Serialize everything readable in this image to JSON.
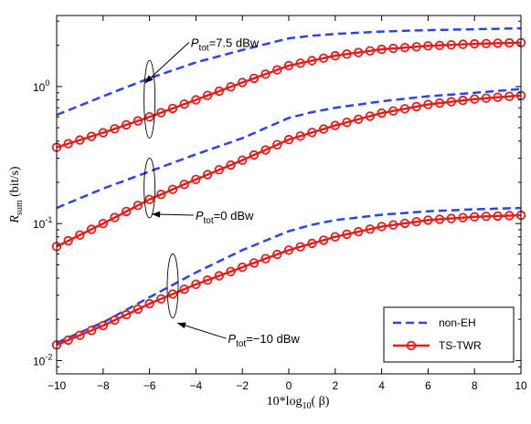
{
  "chart_data": {
    "type": "line",
    "xscale": "linear",
    "yscale": "log",
    "xlim": [
      -10,
      10
    ],
    "ylim": [
      0.008,
      3.3
    ],
    "xticks": [
      "−10",
      "−8",
      "−6",
      "−4",
      "−2",
      "0",
      "2",
      "4",
      "6",
      "8",
      "10"
    ],
    "xtick_values": [
      -10,
      -8,
      -6,
      -4,
      -2,
      0,
      2,
      4,
      6,
      8,
      10
    ],
    "yticks": [
      {
        "value": 0.01,
        "base": "10",
        "exp": "-2"
      },
      {
        "value": 0.1,
        "base": "10",
        "exp": "-1"
      },
      {
        "value": 1,
        "base": "10",
        "exp": "0"
      }
    ],
    "xlabel": {
      "main": "10*log",
      "sub": "10",
      "rest": "( β)"
    },
    "ylabel": {
      "main": "R",
      "sub": "sum",
      "rest": " (bit/s)"
    },
    "series": [
      {
        "name": "non-EH",
        "style": "dashed",
        "color": "#2b44e8",
        "group": "7.5",
        "x": [
          -10,
          -8,
          -6,
          -4,
          -2,
          0,
          1,
          2,
          4,
          6,
          8,
          10
        ],
        "y": [
          0.62,
          0.85,
          1.15,
          1.5,
          1.85,
          2.25,
          2.35,
          2.42,
          2.52,
          2.58,
          2.62,
          2.66
        ]
      },
      {
        "name": "TS-TWR",
        "style": "solid-circle",
        "color": "#e0201c",
        "group": "7.5",
        "x": [
          -10,
          -8,
          -6,
          -4,
          -2,
          0,
          2,
          4,
          6,
          8,
          10
        ],
        "y": [
          0.36,
          0.46,
          0.6,
          0.8,
          1.07,
          1.42,
          1.68,
          1.87,
          1.98,
          2.05,
          2.09
        ]
      },
      {
        "name": "non-EH",
        "style": "dashed",
        "color": "#2b44e8",
        "group": "0",
        "x": [
          -10,
          -8,
          -6,
          -4,
          -2,
          0,
          1,
          2,
          4,
          6,
          8,
          10
        ],
        "y": [
          0.13,
          0.18,
          0.24,
          0.32,
          0.42,
          0.59,
          0.65,
          0.7,
          0.78,
          0.85,
          0.9,
          0.96
        ]
      },
      {
        "name": "TS-TWR",
        "style": "solid-circle",
        "color": "#e0201c",
        "group": "0",
        "x": [
          -10,
          -8,
          -6,
          -4,
          -2,
          0,
          2,
          4,
          6,
          8,
          10
        ],
        "y": [
          0.068,
          0.1,
          0.15,
          0.21,
          0.29,
          0.41,
          0.52,
          0.64,
          0.74,
          0.81,
          0.86
        ]
      },
      {
        "name": "non-EH",
        "style": "dashed",
        "color": "#2b44e8",
        "group": "-10",
        "x": [
          -10,
          -8,
          -6,
          -4,
          -2,
          0,
          1,
          2,
          4,
          6,
          8,
          10
        ],
        "y": [
          0.0135,
          0.019,
          0.029,
          0.044,
          0.064,
          0.088,
          0.098,
          0.106,
          0.116,
          0.123,
          0.127,
          0.13
        ]
      },
      {
        "name": "TS-TWR",
        "style": "solid-circle",
        "color": "#e0201c",
        "group": "-10",
        "x": [
          -10,
          -8,
          -6,
          -4,
          -2,
          0,
          2,
          4,
          6,
          8,
          10
        ],
        "y": [
          0.013,
          0.018,
          0.026,
          0.036,
          0.048,
          0.064,
          0.08,
          0.095,
          0.106,
          0.112,
          0.115
        ]
      }
    ],
    "legend": {
      "position": "bottom-right",
      "entries": [
        {
          "label": "non-EH",
          "style": "dashed",
          "color": "#2b44e8"
        },
        {
          "label": "TS-TWR",
          "style": "solid-circle",
          "color": "#e0201c"
        }
      ]
    },
    "annotations": [
      {
        "id": "ptot-75",
        "p": "P",
        "sub": "tot",
        "text": "=7.5 dBw",
        "ellipse_x": -6,
        "ellipse_y": [
          0.42,
          1.55
        ],
        "arrow_tip": [
          -6.2,
          1.06
        ],
        "anchor": [
          -4.3,
          2.1
        ]
      },
      {
        "id": "ptot-0",
        "p": "P",
        "sub": "tot",
        "text": "=0 dBw",
        "ellipse_x": -6,
        "ellipse_y": [
          0.11,
          0.3
        ],
        "arrow_tip": [
          -5.9,
          0.117
        ],
        "anchor": [
          -4.1,
          0.115
        ]
      },
      {
        "id": "ptot-m10",
        "p": "P",
        "sub": "tot",
        "text": "=−10 dBw",
        "ellipse_x": -5,
        "ellipse_y": [
          0.0205,
          0.06
        ],
        "arrow_tip": [
          -4.8,
          0.0188
        ],
        "anchor": [
          -2.7,
          0.0145
        ]
      }
    ]
  }
}
